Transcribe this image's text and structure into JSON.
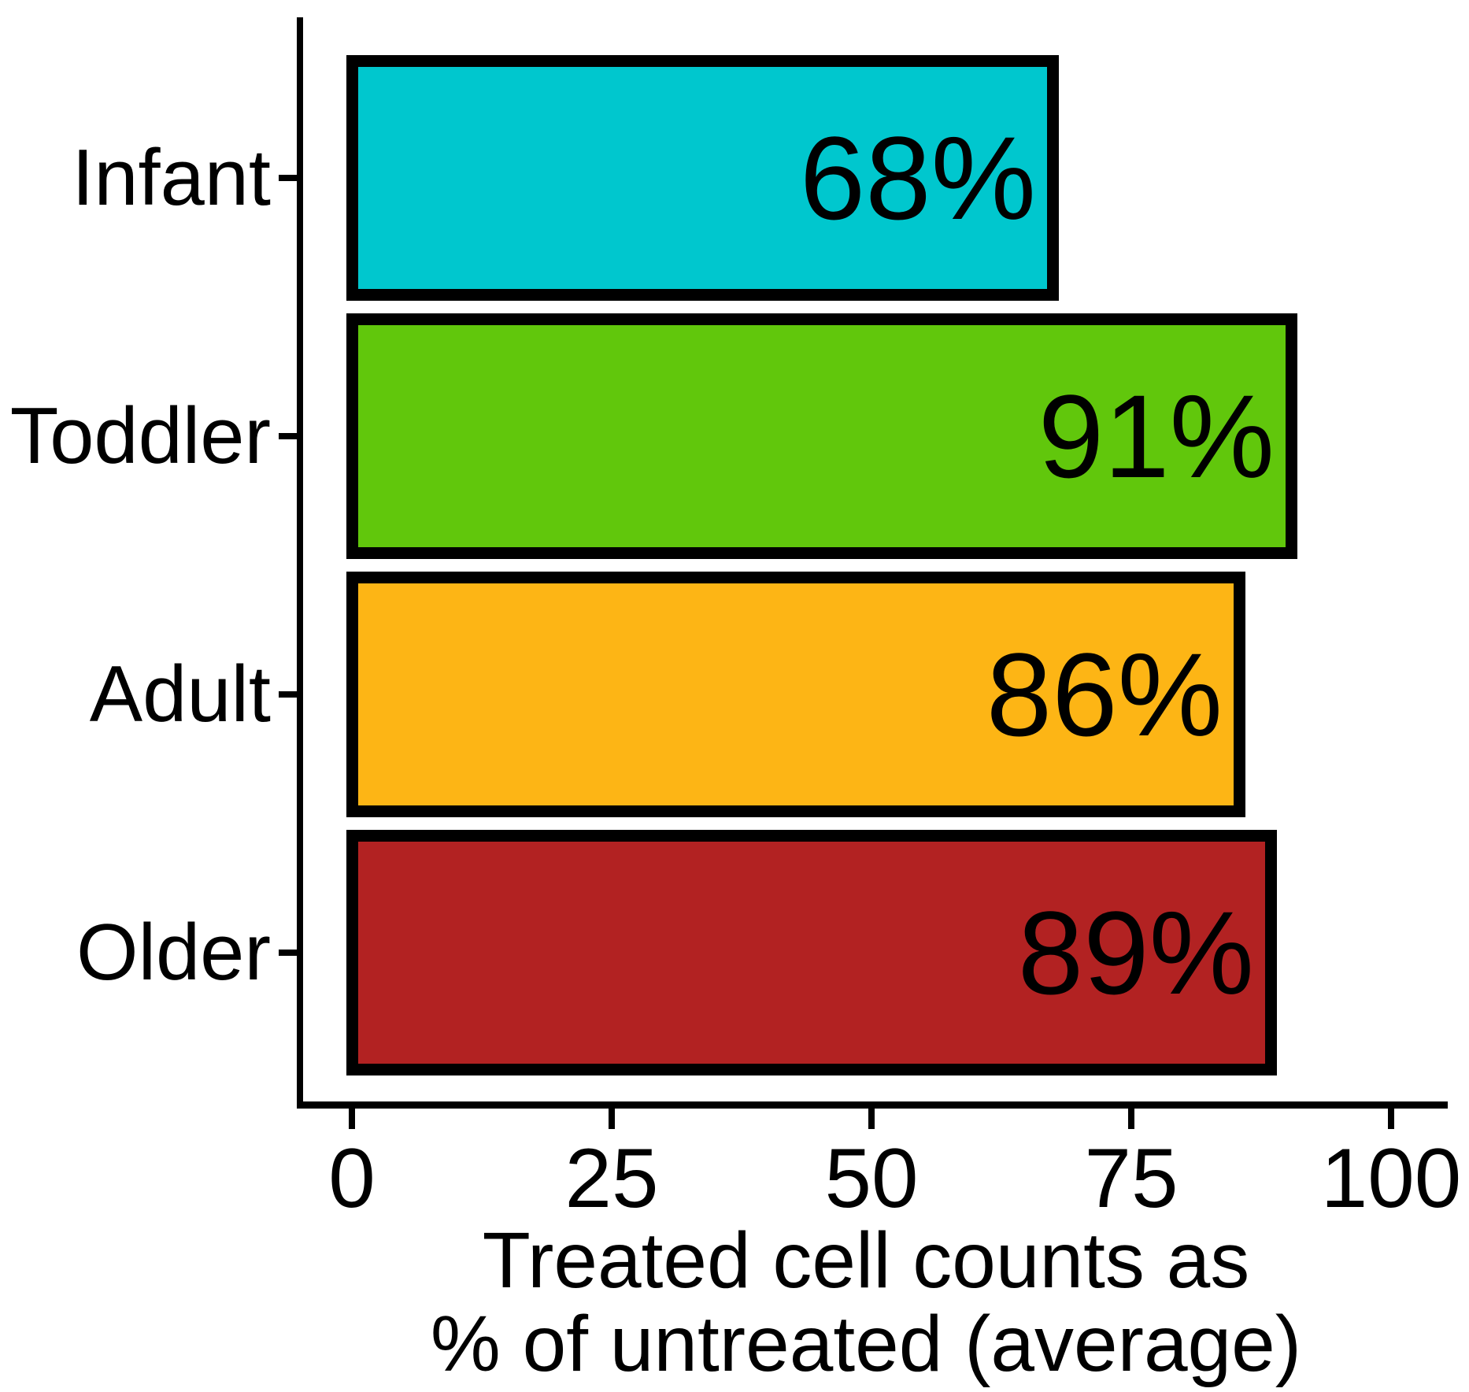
{
  "chart_data": {
    "type": "bar",
    "orientation": "horizontal",
    "title": "",
    "categories": [
      "Infant",
      "Toddler",
      "Adult",
      "Older"
    ],
    "values": [
      68,
      91,
      86,
      89
    ],
    "value_labels": [
      "68%",
      "91%",
      "86%",
      "89%"
    ],
    "series": [
      {
        "name": "Treated cell counts as % of untreated",
        "values": [
          68,
          91,
          86,
          89
        ]
      }
    ],
    "bar_colors": [
      "#00C7CE",
      "#61C70C",
      "#FDB515",
      "#B22222"
    ],
    "bar_border_color": "#000000",
    "x_tick_values": [
      0,
      25,
      50,
      75,
      100
    ],
    "x_tick_labels": [
      "0",
      "25",
      "50",
      "75",
      "100"
    ],
    "xlabel_lines": [
      "Treated cell counts as",
      "% of untreated (average)"
    ],
    "xlabel": "Treated cell counts as % of untreated (average)",
    "ylabel": "",
    "xlim": [
      0,
      100
    ],
    "grid": "off",
    "legend": "none",
    "text_color": "#000000",
    "background_color": "#FFFFFF"
  }
}
